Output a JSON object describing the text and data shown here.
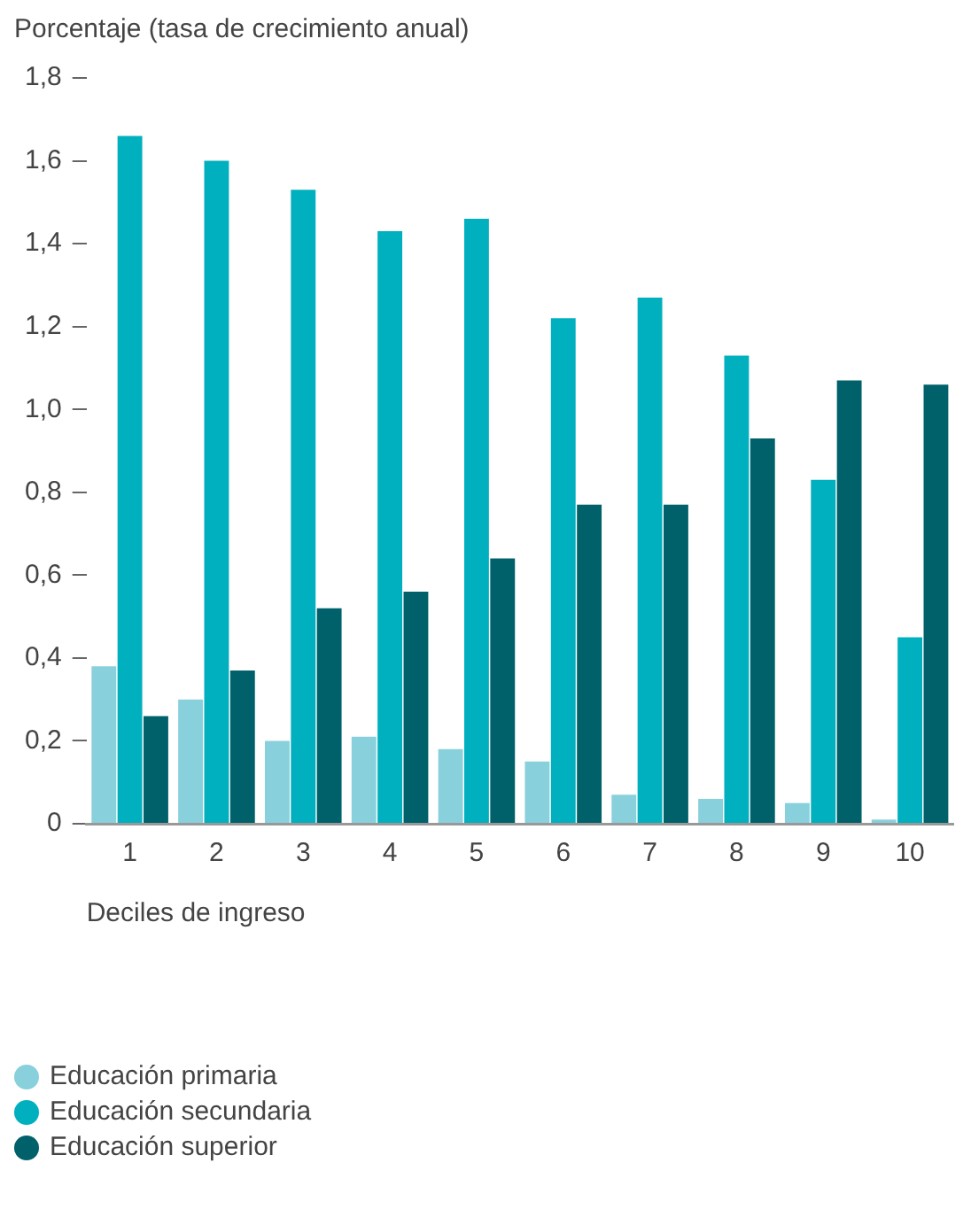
{
  "chart_data": {
    "type": "bar",
    "ylabel": "Porcentaje (tasa de crecimiento anual)",
    "xlabel": "Deciles de ingreso",
    "categories": [
      "1",
      "2",
      "3",
      "4",
      "5",
      "6",
      "7",
      "8",
      "9",
      "10"
    ],
    "series": [
      {
        "name": "Educación primaria",
        "color": "#88d0dc",
        "values": [
          0.38,
          0.3,
          0.2,
          0.21,
          0.18,
          0.15,
          0.07,
          0.06,
          0.05,
          0.01
        ]
      },
      {
        "name": "Educación secundaria",
        "color": "#00b0bf",
        "values": [
          1.66,
          1.6,
          1.53,
          1.43,
          1.46,
          1.22,
          1.27,
          1.13,
          0.83,
          0.45
        ]
      },
      {
        "name": "Educación superior",
        "color": "#00616a",
        "values": [
          0.26,
          0.37,
          0.52,
          0.56,
          0.64,
          0.77,
          0.77,
          0.93,
          1.07,
          1.06
        ]
      }
    ],
    "ylim": [
      0,
      1.8
    ],
    "yticks": [
      0,
      {
        "value": 0.2,
        "label": "0,2"
      },
      {
        "value": 0.4,
        "label": "0,4"
      },
      {
        "value": 0.6,
        "label": "0,6"
      },
      {
        "value": 0.8,
        "label": "0,8"
      },
      {
        "value": 1,
        "label": "1,0"
      },
      {
        "value": 1.2,
        "label": "1,2"
      },
      {
        "value": 1.4,
        "label": "1,4"
      },
      {
        "value": 1.6,
        "label": "1,6"
      },
      {
        "value": 1.8,
        "label": "1,8"
      }
    ],
    "grid": false,
    "legend": "bottom left"
  }
}
